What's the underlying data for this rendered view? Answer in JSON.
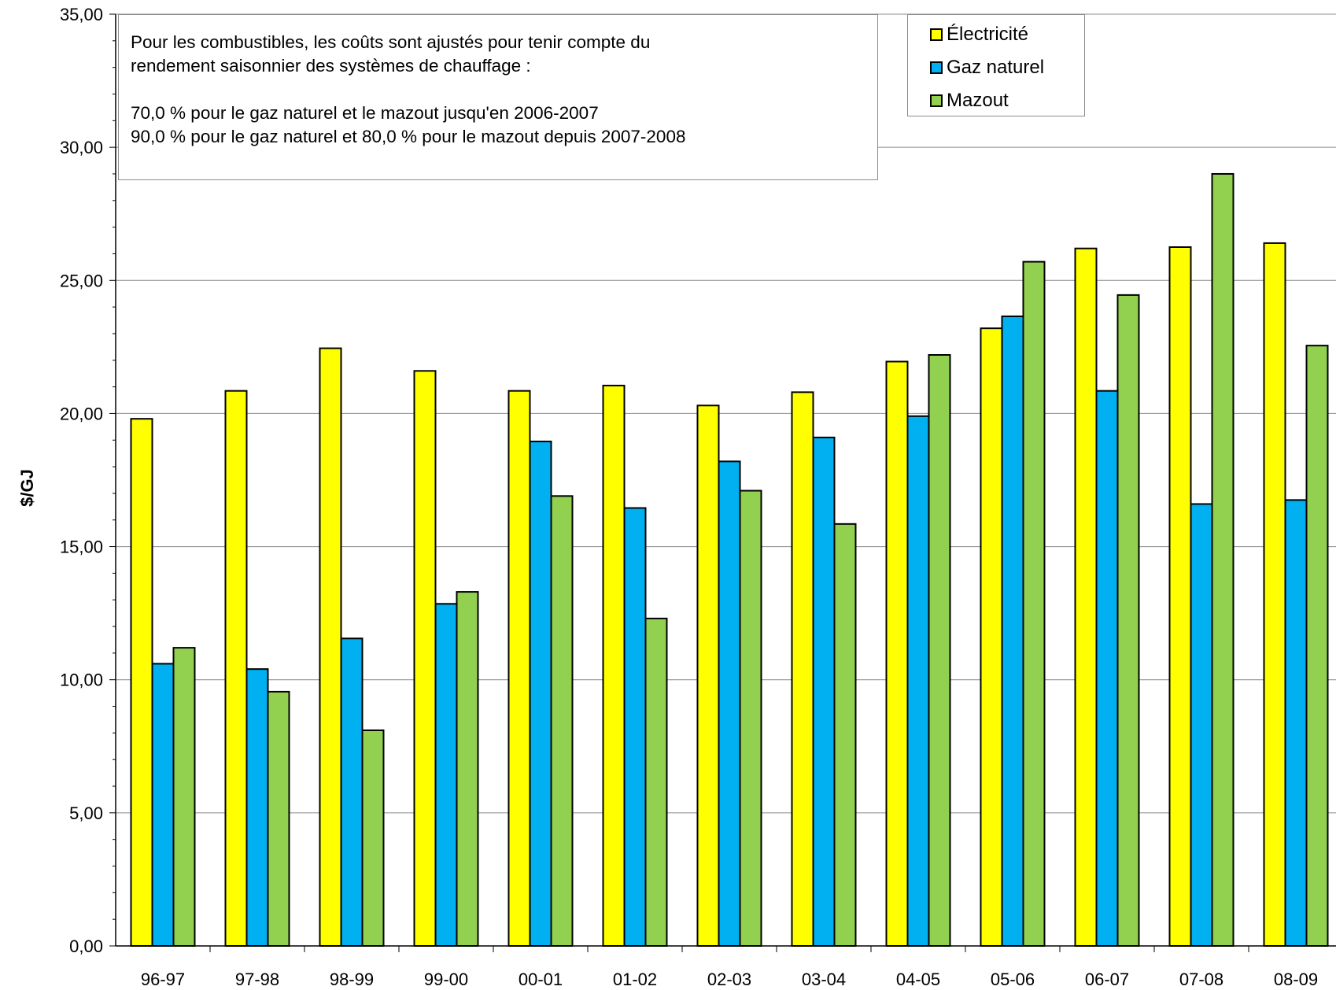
{
  "chart_data": {
    "type": "bar",
    "title": "",
    "xlabel": "",
    "ylabel": "$/GJ",
    "ylim": [
      0,
      35
    ],
    "yticks": [
      "0,00",
      "5,00",
      "10,00",
      "15,00",
      "20,00",
      "25,00",
      "30,00",
      "35,00"
    ],
    "grid": true,
    "legend_position": "top-right",
    "categories": [
      "96-97",
      "97-98",
      "98-99",
      "99-00",
      "00-01",
      "01-02",
      "02-03",
      "03-04",
      "04-05",
      "05-06",
      "06-07",
      "07-08",
      "08-09"
    ],
    "series": [
      {
        "name": "Électricité",
        "color": "#ffff00",
        "values": [
          19.8,
          20.85,
          22.45,
          21.6,
          20.85,
          21.05,
          20.3,
          20.8,
          21.95,
          23.2,
          26.2,
          26.25,
          26.4
        ]
      },
      {
        "name": "Gaz naturel",
        "color": "#00b0f0",
        "values": [
          10.6,
          10.4,
          11.55,
          12.85,
          18.95,
          16.45,
          18.2,
          19.1,
          19.9,
          23.65,
          20.85,
          16.6,
          16.75
        ]
      },
      {
        "name": "Mazout",
        "color": "#92d050",
        "values": [
          11.2,
          9.55,
          8.1,
          13.3,
          16.9,
          12.3,
          17.1,
          15.85,
          22.2,
          25.7,
          24.45,
          29.0,
          22.55
        ]
      }
    ],
    "annotation": {
      "line1": "Pour les combustibles, les coûts sont ajustés pour tenir compte du",
      "line2": "rendement saisonnier des systèmes de chauffage :",
      "line3": "70,0 % pour le gaz naturel et le mazout jusqu'en 2006-2007",
      "line4": "90,0 % pour le gaz naturel et 80,0 % pour le mazout depuis 2007-2008"
    }
  }
}
